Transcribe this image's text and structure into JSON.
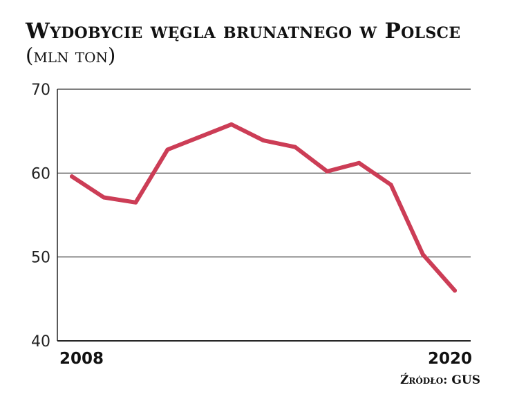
{
  "title": "Wydobycie węgla brunatnego w Polsce",
  "subtitle": "(mln ton)",
  "source": "Źródło: GUS",
  "chart_data": {
    "type": "line",
    "x": [
      2008,
      2009,
      2010,
      2011,
      2012,
      2013,
      2014,
      2015,
      2016,
      2017,
      2018,
      2019,
      2020
    ],
    "series": [
      {
        "values": [
          59.6,
          57.1,
          56.5,
          62.8,
          64.3,
          65.8,
          63.9,
          63.1,
          60.2,
          61.2,
          58.6,
          50.3,
          46.0
        ]
      }
    ],
    "y_ticks": [
      40,
      50,
      60,
      70
    ],
    "x_tick_labels": [
      "2008",
      "2020"
    ],
    "ylim": [
      40,
      70
    ],
    "xlim": [
      2008,
      2020
    ],
    "grid": "horizontal",
    "line_color": "#cc3d56",
    "axis_color": "#222222"
  }
}
